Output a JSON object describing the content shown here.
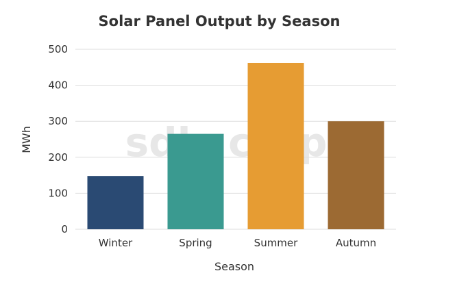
{
  "chart_data": {
    "type": "bar",
    "title": "Solar Panel Output by Season",
    "xlabel": "Season",
    "ylabel": "MWh",
    "categories": [
      "Winter",
      "Spring",
      "Summer",
      "Autumn"
    ],
    "values": [
      148,
      265,
      462,
      300
    ],
    "colors": [
      "#2a4a73",
      "#3a9a90",
      "#e69c33",
      "#9c6a33"
    ],
    "ylim": [
      0,
      500
    ],
    "yticks": [
      0,
      100,
      200,
      300,
      400,
      500
    ],
    "grid": true,
    "legend": "none"
  },
  "watermark": "sdlc corp"
}
